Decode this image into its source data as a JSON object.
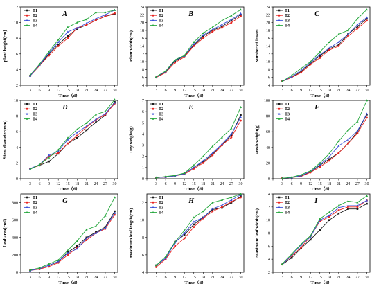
{
  "colors": {
    "T1": "#1a1a1a",
    "T2": "#e8231f",
    "T3": "#3b4fd8",
    "T4": "#22a63a"
  },
  "chart_data": [
    {
      "type": "line",
      "letter": "A",
      "xlabel": "Time（d）",
      "ylabel": "plant height(cm)",
      "ylim": [
        2,
        12
      ],
      "yticks": [
        2,
        4,
        6,
        8,
        10,
        12
      ],
      "x": [
        3,
        6,
        9,
        12,
        15,
        18,
        21,
        24,
        27,
        30
      ],
      "series": [
        {
          "name": "T1",
          "values": [
            3.2,
            4.5,
            6.0,
            7.2,
            8.3,
            9.2,
            9.7,
            10.3,
            10.8,
            11.1
          ]
        },
        {
          "name": "T2",
          "values": [
            3.2,
            4.5,
            5.8,
            7.0,
            8.0,
            9.3,
            9.7,
            10.3,
            10.8,
            11.2
          ]
        },
        {
          "name": "T3",
          "values": [
            3.2,
            4.6,
            6.1,
            7.5,
            8.8,
            9.3,
            9.9,
            10.5,
            11.0,
            11.6
          ]
        },
        {
          "name": "T4",
          "values": [
            3.3,
            4.7,
            6.3,
            7.8,
            9.4,
            10.0,
            10.4,
            11.3,
            11.3,
            11.6
          ]
        }
      ]
    },
    {
      "type": "line",
      "letter": "B",
      "xlabel": "Time（d）",
      "ylabel": "Plant width(cm)",
      "ylim": [
        4,
        24
      ],
      "yticks": [
        4,
        6,
        8,
        10,
        12,
        14,
        16,
        18,
        20,
        22,
        24
      ],
      "x": [
        3,
        6,
        9,
        12,
        15,
        18,
        21,
        24,
        27,
        30
      ],
      "series": [
        {
          "name": "T1",
          "values": [
            6.0,
            7.4,
            10.2,
            11.4,
            14.2,
            16.5,
            18.0,
            19.0,
            20.5,
            22.0
          ]
        },
        {
          "name": "T2",
          "values": [
            6.0,
            7.2,
            9.8,
            11.2,
            14.0,
            16.0,
            17.7,
            18.7,
            20.0,
            21.6
          ]
        },
        {
          "name": "T3",
          "values": [
            6.1,
            7.5,
            10.4,
            11.5,
            14.5,
            16.8,
            18.2,
            19.5,
            20.8,
            22.3
          ]
        },
        {
          "name": "T4",
          "values": [
            6.2,
            7.6,
            10.5,
            11.6,
            15.0,
            17.3,
            18.8,
            20.5,
            21.8,
            23.3
          ]
        }
      ]
    },
    {
      "type": "line",
      "letter": "C",
      "xlabel": "Time（d）",
      "ylabel": "Number of leaves",
      "ylim": [
        4,
        24
      ],
      "yticks": [
        4,
        6,
        8,
        10,
        12,
        14,
        16,
        18,
        20,
        22,
        24
      ],
      "x": [
        3,
        6,
        9,
        12,
        15,
        18,
        21,
        24,
        27,
        30
      ],
      "series": [
        {
          "name": "T1",
          "values": [
            5.0,
            6.0,
            7.5,
            9.5,
            11.5,
            13.3,
            14.3,
            17.0,
            19.0,
            21.0
          ]
        },
        {
          "name": "T2",
          "values": [
            5.0,
            6.0,
            7.2,
            9.3,
            11.0,
            13.0,
            14.0,
            16.5,
            18.5,
            20.5
          ]
        },
        {
          "name": "T3",
          "values": [
            5.0,
            6.2,
            7.8,
            9.8,
            11.8,
            13.5,
            15.0,
            17.0,
            19.5,
            21.3
          ]
        },
        {
          "name": "T4",
          "values": [
            5.0,
            6.5,
            8.3,
            10.0,
            12.5,
            15.0,
            17.0,
            18.0,
            21.0,
            23.3
          ]
        }
      ]
    },
    {
      "type": "line",
      "letter": "D",
      "xlabel": "Time（d）",
      "ylabel": "Stem diameter(mm)",
      "ylim": [
        0,
        10
      ],
      "yticks": [
        0,
        2,
        4,
        6,
        8,
        10
      ],
      "x": [
        3,
        6,
        9,
        12,
        15,
        18,
        21,
        24,
        27,
        30
      ],
      "series": [
        {
          "name": "T1",
          "values": [
            1.3,
            1.7,
            2.2,
            3.2,
            4.5,
            5.2,
            6.2,
            7.2,
            8.1,
            9.8
          ]
        },
        {
          "name": "T2",
          "values": [
            1.3,
            1.7,
            2.9,
            3.3,
            4.5,
            5.5,
            6.6,
            7.5,
            8.2,
            9.6
          ]
        },
        {
          "name": "T3",
          "values": [
            1.3,
            1.8,
            3.0,
            3.5,
            5.0,
            5.9,
            6.7,
            7.6,
            8.3,
            9.7
          ]
        },
        {
          "name": "T4",
          "values": [
            1.2,
            1.8,
            2.7,
            3.7,
            5.2,
            6.3,
            7.1,
            8.2,
            8.6,
            10.1
          ]
        }
      ]
    },
    {
      "type": "line",
      "letter": "E",
      "xlabel": "Time（d）",
      "ylabel": "Dry weight(g)",
      "ylim": [
        0,
        7
      ],
      "yticks": [
        0,
        1,
        2,
        3,
        4,
        5,
        6,
        7
      ],
      "x": [
        3,
        6,
        9,
        12,
        15,
        18,
        21,
        24,
        27,
        30
      ],
      "series": [
        {
          "name": "T1",
          "values": [
            0.1,
            0.15,
            0.25,
            0.45,
            1.0,
            1.5,
            2.2,
            3.0,
            3.9,
            5.7
          ]
        },
        {
          "name": "T2",
          "values": [
            0.1,
            0.15,
            0.25,
            0.4,
            0.9,
            1.4,
            2.1,
            3.0,
            3.7,
            5.2
          ]
        },
        {
          "name": "T3",
          "values": [
            0.1,
            0.15,
            0.25,
            0.45,
            1.0,
            1.6,
            2.3,
            3.1,
            4.0,
            5.5
          ]
        },
        {
          "name": "T4",
          "values": [
            0.1,
            0.2,
            0.3,
            0.5,
            1.2,
            2.0,
            2.9,
            3.7,
            4.5,
            6.4
          ]
        }
      ]
    },
    {
      "type": "line",
      "letter": "F",
      "xlabel": "Time（d）",
      "ylabel": "Fresh weight(g)",
      "ylim": [
        0,
        100
      ],
      "yticks": [
        0,
        20,
        40,
        60,
        80,
        100
      ],
      "x": [
        3,
        6,
        9,
        12,
        15,
        18,
        21,
        24,
        27,
        30
      ],
      "series": [
        {
          "name": "T1",
          "values": [
            0.5,
            1.5,
            3.5,
            8.5,
            17.0,
            25.0,
            33.0,
            45.0,
            60.0,
            82.0
          ]
        },
        {
          "name": "T2",
          "values": [
            0.5,
            1.5,
            3.0,
            8.0,
            15.0,
            23.0,
            33.0,
            45.0,
            58.0,
            78.0
          ]
        },
        {
          "name": "T3",
          "values": [
            0.5,
            1.5,
            4.0,
            9.0,
            18.0,
            28.0,
            42.0,
            50.0,
            61.0,
            83.0
          ]
        },
        {
          "name": "T4",
          "values": [
            0.5,
            2.0,
            5.0,
            10.0,
            20.0,
            32.0,
            48.0,
            62.0,
            73.0,
            100.0
          ]
        }
      ]
    },
    {
      "type": "line",
      "letter": "G",
      "xlabel": "Time（d）",
      "ylabel": "Leaf area(cm²)",
      "ylim": [
        0,
        900
      ],
      "yticks": [
        0,
        200,
        400,
        600,
        800
      ],
      "x": [
        3,
        6,
        9,
        12,
        15,
        18,
        21,
        24,
        27,
        30
      ],
      "series": [
        {
          "name": "T1",
          "values": [
            20,
            40,
            80,
            120,
            230,
            300,
            400,
            460,
            520,
            700
          ]
        },
        {
          "name": "T2",
          "values": [
            20,
            35,
            65,
            110,
            200,
            280,
            370,
            450,
            500,
            660
          ]
        },
        {
          "name": "T3",
          "values": [
            20,
            40,
            80,
            125,
            220,
            270,
            390,
            450,
            510,
            680
          ]
        },
        {
          "name": "T4",
          "values": [
            25,
            50,
            95,
            140,
            250,
            360,
            490,
            530,
            650,
            860
          ]
        }
      ]
    },
    {
      "type": "line",
      "letter": "H",
      "xlabel": "Time（d）",
      "ylabel": "Maximum leaf length(cm)",
      "ylim": [
        4,
        13
      ],
      "yticks": [
        4,
        6,
        8,
        10,
        12
      ],
      "x": [
        3,
        6,
        9,
        12,
        15,
        18,
        21,
        24,
        27,
        30
      ],
      "series": [
        {
          "name": "T1",
          "values": [
            4.8,
            5.6,
            7.5,
            8.3,
            9.5,
            10.3,
            11.2,
            11.4,
            12.0,
            12.7
          ]
        },
        {
          "name": "T2",
          "values": [
            4.6,
            5.5,
            7.0,
            7.9,
            9.2,
            10.2,
            11.0,
            11.5,
            12.1,
            12.6
          ]
        },
        {
          "name": "T3",
          "values": [
            4.8,
            5.6,
            7.4,
            8.5,
            9.8,
            10.3,
            11.3,
            11.7,
            12.3,
            12.9
          ]
        },
        {
          "name": "T4",
          "values": [
            4.8,
            5.8,
            7.5,
            8.8,
            10.3,
            11.0,
            12.0,
            12.3,
            12.6,
            13.0
          ]
        }
      ]
    },
    {
      "type": "line",
      "letter": "I",
      "xlabel": "Time（d）",
      "ylabel": "Maximum leaf width(cm)",
      "ylim": [
        2,
        14
      ],
      "yticks": [
        2,
        4,
        6,
        8,
        10,
        12,
        14
      ],
      "x": [
        3,
        6,
        9,
        12,
        15,
        18,
        21,
        24,
        27,
        30
      ],
      "series": [
        {
          "name": "T1",
          "values": [
            3.2,
            4.2,
            5.7,
            7.0,
            8.5,
            10.0,
            11.0,
            11.7,
            11.7,
            12.5
          ]
        },
        {
          "name": "T2",
          "values": [
            3.2,
            4.5,
            5.8,
            7.5,
            9.8,
            10.5,
            11.5,
            12.0,
            12.0,
            13.0
          ]
        },
        {
          "name": "T3",
          "values": [
            3.2,
            4.6,
            6.2,
            7.4,
            10.0,
            10.7,
            11.9,
            12.2,
            12.2,
            13.0
          ]
        },
        {
          "name": "T4",
          "values": [
            3.3,
            4.8,
            6.3,
            7.6,
            10.2,
            11.2,
            12.2,
            12.9,
            12.7,
            13.7
          ]
        }
      ]
    }
  ]
}
